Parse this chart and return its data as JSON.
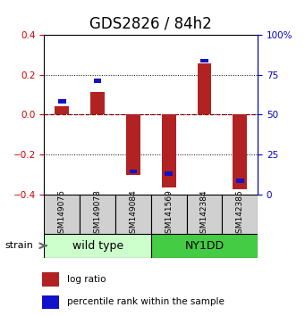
{
  "title": "GDS2826 / 84h2",
  "samples": [
    "GSM149076",
    "GSM149078",
    "GSM149084",
    "GSM141569",
    "GSM142384",
    "GSM142385"
  ],
  "log_ratios": [
    0.04,
    0.115,
    -0.305,
    -0.365,
    0.255,
    -0.375
  ],
  "pct_rank_values": [
    0.065,
    0.17,
    -0.285,
    -0.295,
    0.27,
    -0.33
  ],
  "ylim": [
    -0.4,
    0.4
  ],
  "yticks_left": [
    -0.4,
    -0.2,
    0.0,
    0.2,
    0.4
  ],
  "yticks_right": [
    0,
    25,
    50,
    75,
    100
  ],
  "bar_color": "#b22222",
  "pct_color": "#1111cc",
  "zero_line_color": "#cc0000",
  "groups": [
    {
      "label": "wild type",
      "color": "#ccffcc",
      "start": 0,
      "end": 3
    },
    {
      "label": "NY1DD",
      "color": "#44cc44",
      "start": 3,
      "end": 6
    }
  ],
  "strain_label": "strain",
  "legend_items": [
    {
      "color": "#b22222",
      "label": "log ratio"
    },
    {
      "color": "#1111cc",
      "label": "percentile rank within the sample"
    }
  ],
  "bar_width": 0.4,
  "pct_bar_width": 0.22,
  "pct_bar_height": 0.022,
  "title_fontsize": 12,
  "tick_fontsize": 7.5,
  "sample_fontsize": 6.5,
  "group_fontsize": 9
}
